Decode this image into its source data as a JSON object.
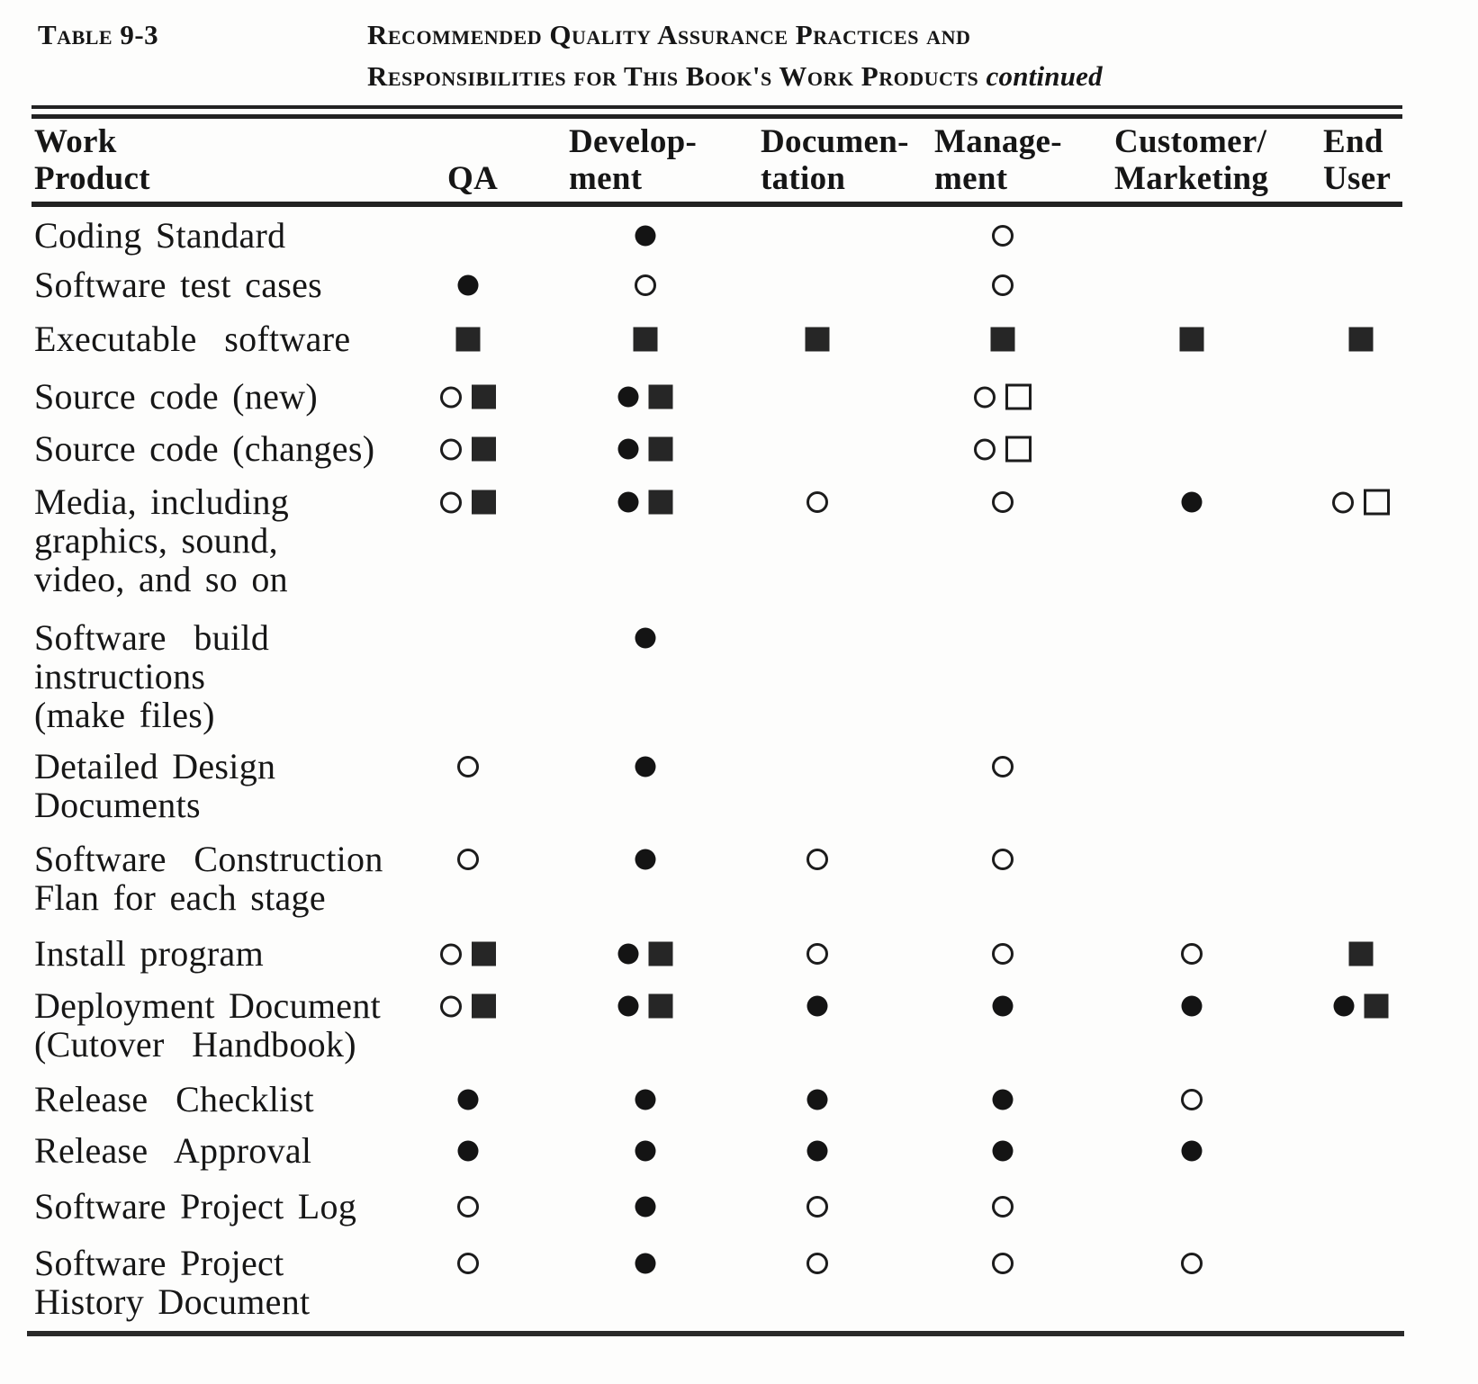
{
  "caption": {
    "label": "Table 9-3",
    "title_line1": "Recommended Quality Assurance Practices and",
    "title_line2": "Responsibilities for This Book's Work Products",
    "continued": "continued"
  },
  "colors": {
    "ink": "#1a1a1a",
    "paper": "#fdfdfc"
  },
  "symbols_legend": {
    "filled-circle": "filled-circle-icon",
    "open-circle": "open-circle-icon",
    "filled-square": "filled-square-icon",
    "open-square": "open-square-icon"
  },
  "columns": [
    {
      "id": "work_product",
      "line1": "Work",
      "line2": "Product"
    },
    {
      "id": "qa",
      "line1": "",
      "line2": "QA"
    },
    {
      "id": "development",
      "line1": "Develop-",
      "line2": "ment"
    },
    {
      "id": "documentation",
      "line1": "Documen-",
      "line2": "tation"
    },
    {
      "id": "management",
      "line1": "Manage-",
      "line2": "ment"
    },
    {
      "id": "customer_marketing",
      "line1": "Customer/",
      "line2": "Marketing"
    },
    {
      "id": "end_user",
      "line1": "End",
      "line2": "User"
    }
  ],
  "rows": [
    {
      "label_lines": [
        "Coding Standard"
      ],
      "cells": {
        "development": [
          "filled-circle"
        ],
        "management": [
          "open-circle"
        ]
      }
    },
    {
      "label_lines": [
        "Software test cases"
      ],
      "cells": {
        "qa": [
          "filled-circle"
        ],
        "development": [
          "open-circle"
        ],
        "management": [
          "open-circle"
        ]
      }
    },
    {
      "label_lines": [
        "Executable  software"
      ],
      "cells": {
        "qa": [
          "filled-square"
        ],
        "development": [
          "filled-square"
        ],
        "documentation": [
          "filled-square"
        ],
        "management": [
          "filled-square"
        ],
        "customer_marketing": [
          "filled-square"
        ],
        "end_user": [
          "filled-square"
        ]
      }
    },
    {
      "label_lines": [
        "Source code (new)"
      ],
      "cells": {
        "qa": [
          "open-circle",
          "filled-square"
        ],
        "development": [
          "filled-circle",
          "filled-square"
        ],
        "management": [
          "open-circle",
          "open-square"
        ]
      }
    },
    {
      "label_lines": [
        "Source code (changes)"
      ],
      "cells": {
        "qa": [
          "open-circle",
          "filled-square"
        ],
        "development": [
          "filled-circle",
          "filled-square"
        ],
        "management": [
          "open-circle",
          "open-square"
        ]
      }
    },
    {
      "label_lines": [
        "Media, including",
        "graphics, sound,",
        "video, and so on"
      ],
      "cells": {
        "qa": [
          "open-circle",
          "filled-square"
        ],
        "development": [
          "filled-circle",
          "filled-square"
        ],
        "documentation": [
          "open-circle"
        ],
        "management": [
          "open-circle"
        ],
        "customer_marketing": [
          "filled-circle"
        ],
        "end_user": [
          "open-circle",
          "open-square"
        ]
      }
    },
    {
      "label_lines": [
        "Software  build",
        "instructions",
        "(make files)"
      ],
      "cells": {
        "development": [
          "filled-circle"
        ]
      }
    },
    {
      "label_lines": [
        "Detailed Design",
        "Documents"
      ],
      "cells": {
        "qa": [
          "open-circle"
        ],
        "development": [
          "filled-circle"
        ],
        "management": [
          "open-circle"
        ]
      }
    },
    {
      "label_lines": [
        "Software  Construction",
        "Flan for each stage"
      ],
      "cells": {
        "qa": [
          "open-circle"
        ],
        "development": [
          "filled-circle"
        ],
        "documentation": [
          "open-circle"
        ],
        "management": [
          "open-circle"
        ]
      }
    },
    {
      "label_lines": [
        "Install program"
      ],
      "cells": {
        "qa": [
          "open-circle",
          "filled-square"
        ],
        "development": [
          "filled-circle",
          "filled-square"
        ],
        "documentation": [
          "open-circle"
        ],
        "management": [
          "open-circle"
        ],
        "customer_marketing": [
          "open-circle"
        ],
        "end_user": [
          "filled-square"
        ]
      }
    },
    {
      "label_lines": [
        "Deployment Document",
        "(Cutover  Handbook)"
      ],
      "cells": {
        "qa": [
          "open-circle",
          "filled-square"
        ],
        "development": [
          "filled-circle",
          "filled-square"
        ],
        "documentation": [
          "filled-circle"
        ],
        "management": [
          "filled-circle"
        ],
        "customer_marketing": [
          "filled-circle"
        ],
        "end_user": [
          "filled-circle",
          "filled-square"
        ]
      }
    },
    {
      "label_lines": [
        "Release  Checklist"
      ],
      "cells": {
        "qa": [
          "filled-circle"
        ],
        "development": [
          "filled-circle"
        ],
        "documentation": [
          "filled-circle"
        ],
        "management": [
          "filled-circle"
        ],
        "customer_marketing": [
          "open-circle"
        ]
      }
    },
    {
      "label_lines": [
        "Release  Approval"
      ],
      "cells": {
        "qa": [
          "filled-circle"
        ],
        "development": [
          "filled-circle"
        ],
        "documentation": [
          "filled-circle"
        ],
        "management": [
          "filled-circle"
        ],
        "customer_marketing": [
          "filled-circle"
        ]
      }
    },
    {
      "label_lines": [
        "Software Project Log"
      ],
      "cells": {
        "qa": [
          "open-circle"
        ],
        "development": [
          "filled-circle"
        ],
        "documentation": [
          "open-circle"
        ],
        "management": [
          "open-circle"
        ]
      }
    },
    {
      "label_lines": [
        "Software Project",
        "History Document"
      ],
      "cells": {
        "qa": [
          "open-circle"
        ],
        "development": [
          "filled-circle"
        ],
        "documentation": [
          "open-circle"
        ],
        "management": [
          "open-circle"
        ],
        "customer_marketing": [
          "open-circle"
        ]
      }
    }
  ]
}
